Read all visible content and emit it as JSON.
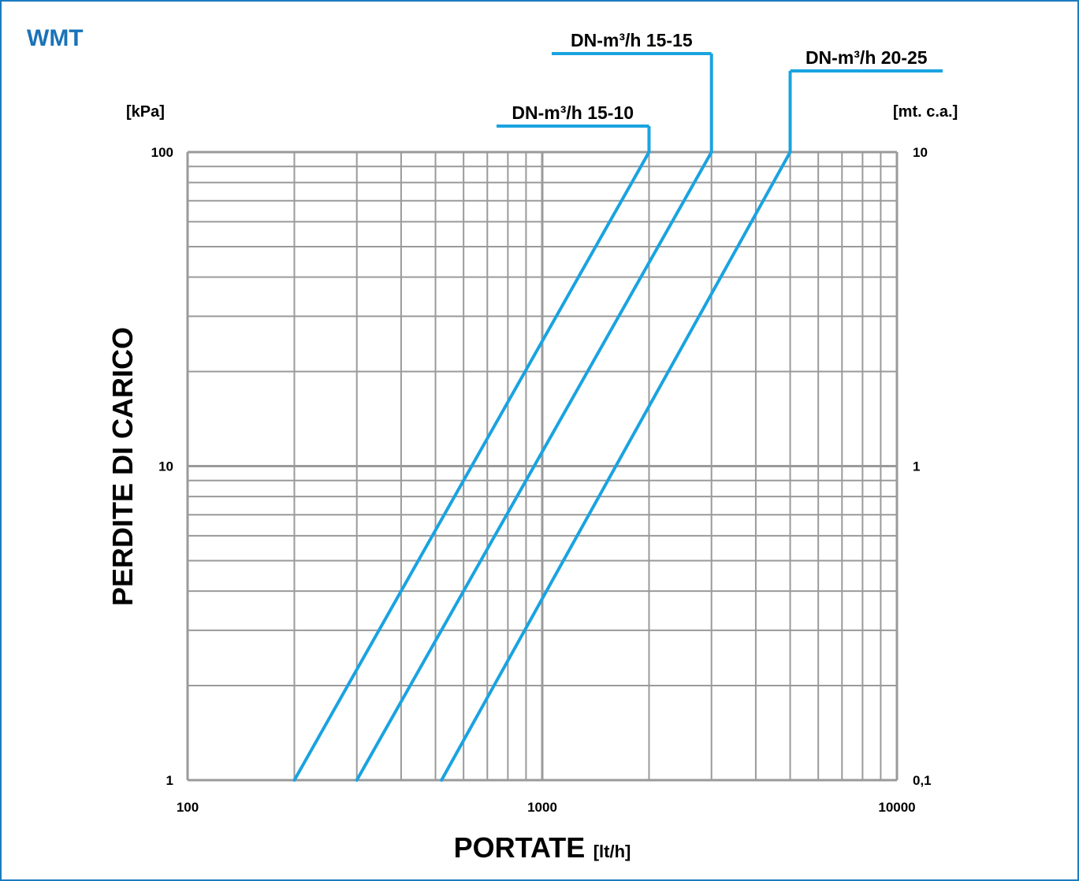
{
  "brand": "WMT",
  "chart_data": {
    "type": "line",
    "x_scale": "log",
    "y_scale": "log",
    "xlim": [
      100,
      10000
    ],
    "ylim": [
      1,
      100
    ],
    "y2lim": [
      0.1,
      10
    ],
    "grid": true,
    "xlabel": "PORTATE",
    "xlabel_unit": "[lt/h]",
    "ylabel": "PERDITE DI CARICO",
    "ylabel_unit_left": "[kPa]",
    "ylabel_unit_right": "[mt. c.a.]",
    "x_ticks": [
      "100",
      "1000",
      "10000"
    ],
    "y_ticks_left": [
      "1",
      "10",
      "100"
    ],
    "y_ticks_right": [
      "0,1",
      "1",
      "10"
    ],
    "series_color": "#1aa3e0",
    "grid_color": "#9a9a9a",
    "series": [
      {
        "name": "DN-m³/h 15-10",
        "x": [
          200,
          2000
        ],
        "y": [
          1,
          100
        ]
      },
      {
        "name": "DN-m³/h 15-15",
        "x": [
          300,
          3000
        ],
        "y": [
          1,
          100
        ]
      },
      {
        "name": "DN-m³/h 20-25",
        "x": [
          520,
          5000
        ],
        "y": [
          1,
          100
        ]
      }
    ]
  }
}
